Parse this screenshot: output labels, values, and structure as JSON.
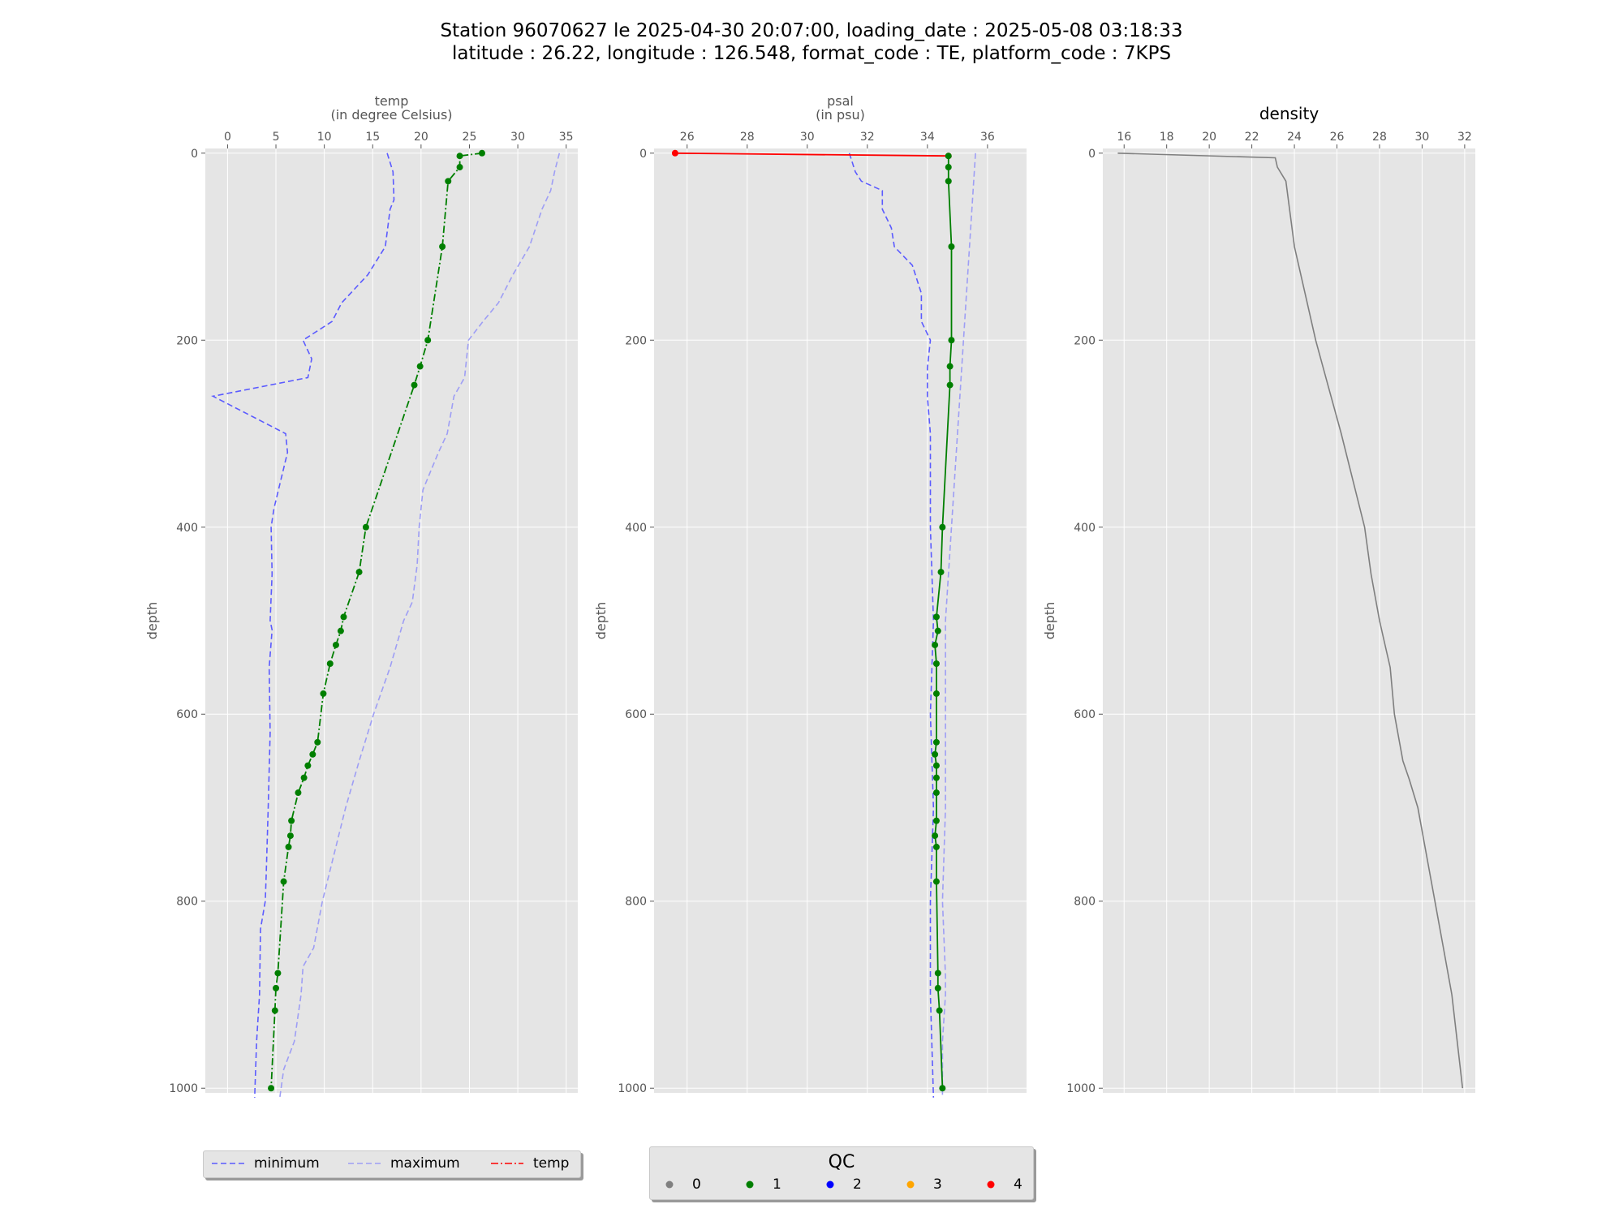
{
  "figure": {
    "title_line1": "Station 96070627 le 2025-04-30 20:07:00, loading_date : 2025-05-08 03:18:33",
    "title_line2": "latitude : 26.22, longitude : 126.548, format_code : TE, platform_code : 7KPS"
  },
  "colors": {
    "background": "#e5e5e5",
    "grid": "#ffffff",
    "minimum": "#5b5bff",
    "maximum": "#9e9ef5",
    "qc_0": "#808080",
    "qc_1": "#007f00",
    "qc_2": "#0000ff",
    "qc_3": "#ffa500",
    "qc_4": "#ff0000",
    "density": "#7f7f7f"
  },
  "legend_main": {
    "items": [
      {
        "label": "minimum",
        "color": "#5b5bff",
        "dash": "dash"
      },
      {
        "label": "maximum",
        "color": "#9e9ef5",
        "dash": "dash"
      },
      {
        "label": "temp",
        "color": "#ff0000",
        "dash": "dashdot"
      }
    ]
  },
  "legend_qc": {
    "title": "QC",
    "items": [
      {
        "label": "0",
        "color": "#808080"
      },
      {
        "label": "1",
        "color": "#007f00"
      },
      {
        "label": "2",
        "color": "#0000ff"
      },
      {
        "label": "3",
        "color": "#ffa500"
      },
      {
        "label": "4",
        "color": "#ff0000"
      }
    ]
  },
  "chart_data": [
    {
      "type": "line",
      "title": "temp",
      "subtitle": "(in degree Celsius)",
      "xlabel": "temp\n(in degree Celsius)",
      "ylabel": "depth",
      "xlim": [
        -2.3,
        36.2
      ],
      "ylim": [
        1005,
        -5
      ],
      "xticks": [
        0,
        5,
        10,
        15,
        20,
        25,
        30,
        35
      ],
      "yticks": [
        0,
        200,
        400,
        600,
        800,
        1000
      ],
      "grid": true,
      "series": [
        {
          "name": "minimum",
          "style": "dash",
          "color": "#5b5bff",
          "x": [
            16.5,
            17.1,
            17.2,
            16.8,
            16.3,
            14.5,
            11.8,
            10.8,
            7.8,
            8.7,
            8.3,
            -1.5,
            6.0,
            6.2,
            4.8,
            4.5,
            4.6,
            4.4,
            4.6,
            4.3,
            4.4,
            4.2,
            4.0,
            3.9,
            3.4,
            3.3,
            3.0,
            2.8
          ],
          "y": [
            0,
            20,
            50,
            60,
            100,
            130,
            160,
            180,
            200,
            220,
            240,
            260,
            300,
            320,
            380,
            400,
            450,
            500,
            510,
            550,
            620,
            700,
            770,
            800,
            830,
            900,
            950,
            1010
          ]
        },
        {
          "name": "maximum",
          "style": "dash",
          "color": "#9e9ef5",
          "x": [
            34.3,
            33.8,
            33.4,
            32.5,
            31.2,
            29.5,
            28.0,
            26.4,
            24.9,
            24.5,
            23.4,
            22.7,
            21.8,
            20.2,
            19.8,
            19.6,
            19.1,
            18.2,
            16.8,
            15.1,
            13.6,
            12.2,
            11.0,
            9.8,
            8.9,
            7.8,
            7.6,
            6.9,
            5.8,
            5.4
          ],
          "y": [
            0,
            20,
            40,
            60,
            100,
            130,
            160,
            180,
            200,
            240,
            260,
            300,
            320,
            360,
            400,
            440,
            480,
            500,
            550,
            600,
            650,
            700,
            750,
            800,
            850,
            870,
            900,
            950,
            980,
            1010
          ]
        },
        {
          "name": "temp",
          "style": "dashdot",
          "color": "#007f00",
          "qc": 1,
          "x": [
            26.3,
            24.0,
            24.0,
            22.8,
            22.2,
            20.7,
            19.9,
            19.3,
            14.3,
            13.6,
            12.0,
            11.7,
            11.2,
            10.6,
            9.9,
            9.3,
            8.8,
            8.3,
            7.9,
            7.3,
            6.6,
            6.5,
            6.3,
            5.8,
            5.2,
            5.0,
            4.9,
            4.5
          ],
          "y": [
            0,
            3,
            15,
            30,
            100,
            200,
            228,
            248,
            400,
            448,
            496,
            511,
            526,
            546,
            578,
            630,
            643,
            655,
            668,
            684,
            714,
            730,
            742,
            779,
            877,
            893,
            917,
            1000
          ]
        }
      ]
    },
    {
      "type": "line",
      "title": "psal",
      "subtitle": "(in psu)",
      "xlabel": "psal\n(in psu)",
      "ylabel": "depth",
      "xlim": [
        24.9,
        37.3
      ],
      "ylim": [
        1005,
        -5
      ],
      "xticks": [
        26,
        28,
        30,
        32,
        34,
        36
      ],
      "yticks": [
        0,
        200,
        400,
        600,
        800,
        1000
      ],
      "grid": true,
      "series": [
        {
          "name": "minimum",
          "style": "dash",
          "color": "#5b5bff",
          "x": [
            31.4,
            31.6,
            31.8,
            32.5,
            32.5,
            32.8,
            32.9,
            33.5,
            33.8,
            33.8,
            34.1,
            34.0,
            34.0,
            34.1,
            34.1,
            34.2,
            34.1,
            34.2,
            34.1,
            34.1,
            34.2
          ],
          "y": [
            0,
            20,
            30,
            40,
            60,
            80,
            100,
            120,
            150,
            180,
            200,
            230,
            260,
            300,
            400,
            500,
            600,
            700,
            800,
            900,
            1010
          ]
        },
        {
          "name": "maximum",
          "style": "dash",
          "color": "#9e9ef5",
          "x": [
            35.6,
            35.5,
            35.4,
            35.3,
            35.2,
            35.1,
            35.0,
            34.9,
            34.8,
            34.6,
            34.6,
            34.6,
            34.5,
            34.6,
            34.6,
            34.5,
            34.5
          ],
          "y": [
            0,
            50,
            100,
            150,
            200,
            250,
            300,
            350,
            400,
            500,
            600,
            700,
            800,
            880,
            900,
            950,
            1010
          ]
        },
        {
          "name": "psal_qc4",
          "style": "solid",
          "color": "#ff0000",
          "qc": 4,
          "x": [
            25.6,
            34.7
          ],
          "y": [
            0,
            3
          ]
        },
        {
          "name": "psal_qc1",
          "style": "solid",
          "color": "#007f00",
          "qc": 1,
          "x": [
            34.7,
            34.7,
            34.7,
            34.8,
            34.8,
            34.75,
            34.75,
            34.5,
            34.45,
            34.3,
            34.35,
            34.25,
            34.3,
            34.3,
            34.3,
            34.25,
            34.3,
            34.3,
            34.3,
            34.3,
            34.25,
            34.3,
            34.3,
            34.35,
            34.35,
            34.4,
            34.5
          ],
          "y": [
            3,
            15,
            30,
            100,
            200,
            228,
            248,
            400,
            448,
            496,
            511,
            526,
            546,
            578,
            630,
            643,
            655,
            668,
            684,
            714,
            730,
            742,
            779,
            877,
            893,
            917,
            1000
          ]
        }
      ]
    },
    {
      "type": "line",
      "title": "density",
      "xlabel": "",
      "ylabel": "depth",
      "xlim": [
        15.0,
        32.5
      ],
      "ylim": [
        1005,
        -5
      ],
      "xticks": [
        16,
        18,
        20,
        22,
        24,
        26,
        28,
        30,
        32
      ],
      "yticks": [
        0,
        200,
        400,
        600,
        800,
        1000
      ],
      "grid": true,
      "series": [
        {
          "name": "density",
          "style": "solid",
          "color": "#7f7f7f",
          "x": [
            15.7,
            23.1,
            23.2,
            23.6,
            24.0,
            24.5,
            25.0,
            25.6,
            26.2,
            27.3,
            27.6,
            28.0,
            28.2,
            28.5,
            28.7,
            29.1,
            29.4,
            29.8,
            30.2,
            30.6,
            31.0,
            31.4,
            31.9
          ],
          "y": [
            0,
            5,
            15,
            30,
            100,
            150,
            200,
            250,
            300,
            400,
            450,
            500,
            520,
            550,
            600,
            650,
            670,
            700,
            750,
            800,
            850,
            900,
            1000
          ]
        }
      ]
    }
  ]
}
